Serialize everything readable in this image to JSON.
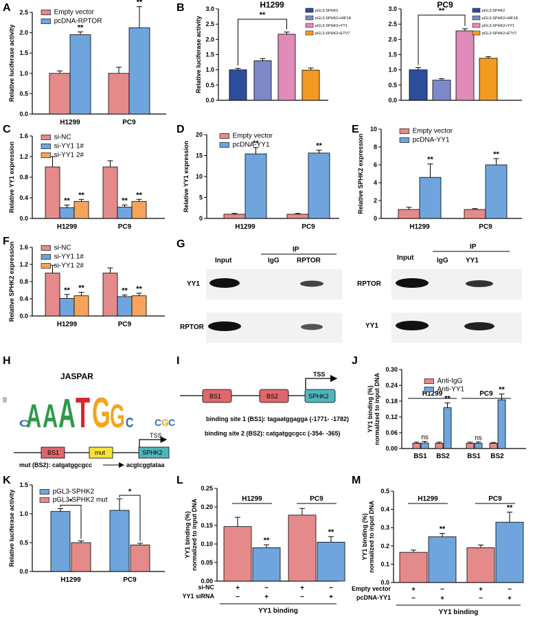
{
  "colors": {
    "pink": "#e58a8a",
    "blue": "#6fa5dc",
    "orange": "#f5a45a",
    "navy": "#2d4e9c",
    "periwinkle": "#7e89cc",
    "rose": "#e08cb8",
    "flame": "#f39a21",
    "red_box": "#e0676a",
    "yellow_box": "#f6e33b",
    "teal_box": "#4fb6bd"
  },
  "panel_letters": {
    "A": "A",
    "B": "B",
    "C": "C",
    "D": "D",
    "E": "E",
    "F": "F",
    "G": "G",
    "H": "H",
    "I": "I",
    "J": "J",
    "K": "K",
    "L": "L",
    "M": "M"
  },
  "chart_data": [
    {
      "id": "A",
      "type": "bar",
      "ylabel": "Relative luciferase activity",
      "categories": [
        "H1299",
        "PC9"
      ],
      "ylim": [
        0,
        2.5
      ],
      "yticks": [
        "0.0",
        "0.5",
        "1.0",
        "1.5",
        "2.0",
        "2.5"
      ],
      "series": [
        {
          "name": "Empty vector",
          "values": [
            1.0,
            1.0
          ],
          "errors": [
            0.06,
            0.15
          ]
        },
        {
          "name": "pcDNA-RPTOR",
          "values": [
            1.95,
            2.12
          ],
          "errors": [
            0.07,
            0.52
          ]
        }
      ],
      "annotations": [
        [
          "",
          "**"
        ],
        [
          "",
          "**"
        ]
      ]
    },
    {
      "id": "B1",
      "type": "bar",
      "title": "H1299",
      "ylabel": "Relative luciferase activity",
      "categories": [
        "pGL3-SPHK2",
        "pGL3-SPHK2+HIF1A",
        "pGL3-SPHK2+YY1",
        "pGL3-SPHK2+ETV7"
      ],
      "ylim": [
        0,
        3.0
      ],
      "yticks": [
        "0.0",
        "0.5",
        "1.0",
        "1.5",
        "2.0",
        "2.5",
        "3.0"
      ],
      "values": [
        1.0,
        1.3,
        2.17,
        0.99
      ],
      "errors": [
        0.05,
        0.07,
        0.07,
        0.07
      ],
      "bracket": "**"
    },
    {
      "id": "B2",
      "type": "bar",
      "title": "PC9",
      "categories": [
        "pGL3-SPHK2",
        "pGL3-SPHK2+HIF1A",
        "pGL3-SPHK2+YY1",
        "pGL3-SPHK2+ETV7"
      ],
      "ylim": [
        0,
        3.0
      ],
      "yticks": [
        "0.0",
        "0.5",
        "1.0",
        "1.5",
        "2.0",
        "2.5",
        "3.0"
      ],
      "values": [
        1.0,
        0.66,
        2.28,
        1.38
      ],
      "errors": [
        0.07,
        0.05,
        0.07,
        0.05
      ],
      "bracket": "**"
    },
    {
      "id": "C",
      "type": "bar",
      "ylabel": "Relative YY1 expression",
      "categories": [
        "H1299",
        "PC9"
      ],
      "ylim": [
        0,
        1.6
      ],
      "yticks": [
        "0.0",
        "0.4",
        "0.8",
        "1.2",
        "1.6"
      ],
      "series": [
        {
          "name": "si-NC",
          "values": [
            1.0,
            1.0
          ],
          "errors": [
            0.2,
            0.12
          ]
        },
        {
          "name": "si-YY1 1#",
          "values": [
            0.21,
            0.22
          ],
          "errors": [
            0.05,
            0.04
          ]
        },
        {
          "name": "si-YY1 2#",
          "values": [
            0.33,
            0.33
          ],
          "errors": [
            0.04,
            0.04
          ]
        }
      ],
      "annotations": [
        [
          "",
          "**",
          "**"
        ],
        [
          "",
          "**",
          "**"
        ]
      ]
    },
    {
      "id": "D",
      "type": "bar",
      "ylabel": "Relative YY1 expression",
      "categories": [
        "H1299",
        "PC9"
      ],
      "ylim": [
        0,
        20
      ],
      "yticks": [
        "0",
        "5",
        "10",
        "15",
        "20"
      ],
      "series": [
        {
          "name": "Empty vector",
          "values": [
            1.0,
            1.0
          ],
          "errors": [
            0.2,
            0.2
          ]
        },
        {
          "name": "pcDNA-YY1",
          "values": [
            15.4,
            15.6
          ],
          "errors": [
            1.5,
            0.7
          ]
        }
      ],
      "annotations": [
        [
          "",
          "**"
        ],
        [
          "",
          "**"
        ]
      ]
    },
    {
      "id": "E",
      "type": "bar",
      "ylabel": "Relative SPHK2 expression",
      "categories": [
        "H1299",
        "PC9"
      ],
      "ylim": [
        0,
        10
      ],
      "yticks": [
        "0",
        "2",
        "4",
        "6",
        "8",
        "10"
      ],
      "series": [
        {
          "name": "Empty vector",
          "values": [
            1.0,
            1.0
          ],
          "errors": [
            0.25,
            0.1
          ]
        },
        {
          "name": "pcDNA-YY1",
          "values": [
            4.6,
            6.0
          ],
          "errors": [
            1.5,
            0.7
          ]
        }
      ],
      "annotations": [
        [
          "",
          "**"
        ],
        [
          "",
          "**"
        ]
      ]
    },
    {
      "id": "F",
      "type": "bar",
      "ylabel": "Relative SPHK2 expression",
      "categories": [
        "H1299",
        "PC9"
      ],
      "ylim": [
        0,
        1.6
      ],
      "yticks": [
        "0.0",
        "0.4",
        "0.8",
        "1.2",
        "1.6"
      ],
      "series": [
        {
          "name": "si-NC",
          "values": [
            1.0,
            1.0
          ],
          "errors": [
            0.18,
            0.12
          ]
        },
        {
          "name": "si-YY1 1#",
          "values": [
            0.41,
            0.45
          ],
          "errors": [
            0.09,
            0.04
          ]
        },
        {
          "name": "si-YY1 2#",
          "values": [
            0.47,
            0.47
          ],
          "errors": [
            0.08,
            0.06
          ]
        }
      ],
      "annotations": [
        [
          "",
          "**",
          "**"
        ],
        [
          "",
          "**",
          "**"
        ]
      ]
    },
    {
      "id": "J",
      "type": "bar",
      "ylabel": "YY1 binding (%) normalized to input DNA",
      "categories": [
        "BS1",
        "BS2",
        "BS1",
        "BS2"
      ],
      "groups": [
        "H1299",
        "PC9"
      ],
      "ylim": [
        0,
        0.3
      ],
      "yticks": [
        "0.00",
        "0.06",
        "0.12",
        "0.18",
        "0.24",
        "0.30"
      ],
      "series": [
        {
          "name": "Anti-IgG",
          "values": [
            0.02,
            0.02,
            0.02,
            0.02
          ],
          "errors": [
            0.004,
            0.004,
            0.004,
            0.003
          ]
        },
        {
          "name": "Anti-YY1",
          "values": [
            0.021,
            0.155,
            0.02,
            0.185
          ],
          "errors": [
            0.006,
            0.018,
            0.005,
            0.022
          ]
        }
      ],
      "annotations": [
        [
          "",
          "ns"
        ],
        [
          "",
          "**"
        ],
        [
          "",
          "ns"
        ],
        [
          "",
          "**"
        ]
      ]
    },
    {
      "id": "K",
      "type": "bar",
      "ylabel": "Relative luciferase activity",
      "categories": [
        "H1299",
        "PC9"
      ],
      "ylim": [
        0,
        1.5
      ],
      "yticks": [
        "0.0",
        "0.5",
        "1.0",
        "1.5"
      ],
      "series": [
        {
          "name": "pGL3-SPHK2",
          "values": [
            1.04,
            1.06
          ],
          "errors": [
            0.05,
            0.2
          ]
        },
        {
          "name": "pGL3-SPHK2 mut",
          "values": [
            0.5,
            0.46
          ],
          "errors": [
            0.03,
            0.03
          ]
        }
      ],
      "bracket": "*"
    },
    {
      "id": "L",
      "type": "bar",
      "ylabel": "YY1 binding (%) normalized to input DNA",
      "categories": [
        "H1299",
        "PC9"
      ],
      "ylim": [
        0,
        0.25
      ],
      "yticks": [
        "0.00",
        "0.05",
        "0.10",
        "0.15",
        "0.20",
        "0.25"
      ],
      "series": [
        {
          "name": "si-NC",
          "values": [
            0.147,
            0.178
          ],
          "errors": [
            0.025,
            0.018
          ]
        },
        {
          "name": "YY1 siRNA",
          "values": [
            0.09,
            0.105
          ],
          "errors": [
            0.008,
            0.015
          ]
        }
      ],
      "annotations": [
        [
          "",
          "**"
        ],
        [
          "",
          "**"
        ]
      ],
      "row_labels": [
        "si-NC",
        "YY1 siRNA"
      ],
      "xlabel": "YY1 binding"
    },
    {
      "id": "M",
      "type": "bar",
      "ylabel": "YY1 binding (%) normalized to input DNA",
      "categories": [
        "H1299",
        "PC9"
      ],
      "ylim": [
        0,
        0.5
      ],
      "yticks": [
        "0.0",
        "0.1",
        "0.2",
        "0.3",
        "0.4",
        "0.5"
      ],
      "series": [
        {
          "name": "Empty vector",
          "values": [
            0.165,
            0.19
          ],
          "errors": [
            0.012,
            0.015
          ]
        },
        {
          "name": "pcDNA-YY1",
          "values": [
            0.25,
            0.33
          ],
          "errors": [
            0.018,
            0.055
          ]
        }
      ],
      "annotations": [
        [
          "",
          "**"
        ],
        [
          "",
          "**"
        ]
      ],
      "row_labels": [
        "Empty vector",
        "pcDNA-YY1"
      ],
      "xlabel": "YY1 binding"
    }
  ],
  "western": {
    "ip_label": "IP",
    "left": {
      "headers": [
        "Input",
        "IgG",
        "RPTOR"
      ],
      "rows": [
        "YY1",
        "RPTOR"
      ]
    },
    "right": {
      "headers": [
        "Input",
        "IgG",
        "YY1"
      ],
      "rows": [
        "RPTOR",
        "YY1"
      ]
    }
  },
  "jaspar": {
    "title": "JASPAR",
    "motif": [
      "C",
      "A",
      "A",
      "A",
      "T",
      "G",
      "G",
      "C",
      "C",
      "G",
      "C"
    ],
    "mut_text": "mut (BS2): catgatggcgcc",
    "mut_result": "acgtcggtataa",
    "boxes": [
      "BS1",
      "mut",
      "SPHK2"
    ],
    "tss": "TSS"
  },
  "promoter": {
    "boxes": [
      "BS1",
      "BS2",
      "SPHK2"
    ],
    "tss": "TSS",
    "site1": "binding site 1 (BS1): tagaatggagga (-1771- -1782)",
    "site2": "binding site 2 (BS2): catgatggcgcc (-354- -365)"
  },
  "signs": {
    "plus": "+",
    "minus": "−"
  }
}
